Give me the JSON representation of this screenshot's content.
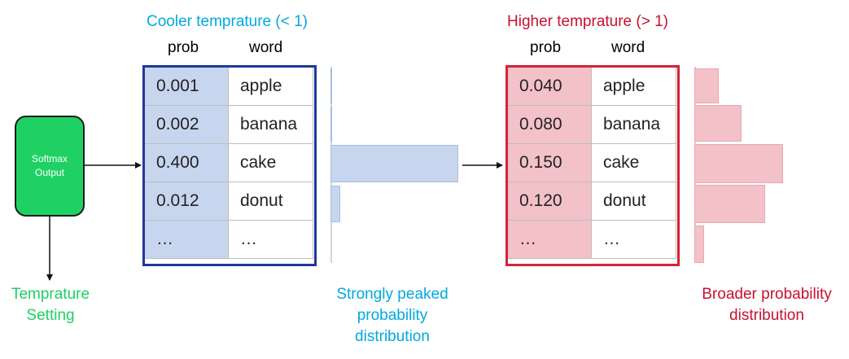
{
  "cool": {
    "title": "Cooler temprature (< 1)",
    "title_color": "#00a9e0",
    "frame_color": "#1f3899",
    "prob_header": "prob",
    "word_header": "word",
    "rows": [
      {
        "prob": "0.001",
        "word": "apple"
      },
      {
        "prob": "0.002",
        "word": "banana"
      },
      {
        "prob": "0.400",
        "word": "cake"
      },
      {
        "prob": "0.012",
        "word": "donut"
      },
      {
        "prob": "…",
        "word": "…"
      }
    ],
    "caption_lines": [
      "Strongly peaked",
      "probability",
      "distribution"
    ]
  },
  "hot": {
    "title": "Higher temprature (> 1)",
    "title_color": "#c8102e",
    "frame_color": "#d3233a",
    "prob_header": "prob",
    "word_header": "word",
    "rows": [
      {
        "prob": "0.040",
        "word": "apple"
      },
      {
        "prob": "0.080",
        "word": "banana"
      },
      {
        "prob": "0.150",
        "word": "cake"
      },
      {
        "prob": "0.120",
        "word": "donut"
      },
      {
        "prob": "…",
        "word": "…"
      }
    ],
    "caption_lines": [
      "Broader probability",
      "distribution"
    ]
  },
  "softmax": {
    "lines": [
      "Softmax",
      "Output"
    ],
    "color": "#1fd163"
  },
  "temperature_setting": {
    "lines": [
      "Temprature",
      "Setting"
    ],
    "color": "#1fd163"
  }
}
